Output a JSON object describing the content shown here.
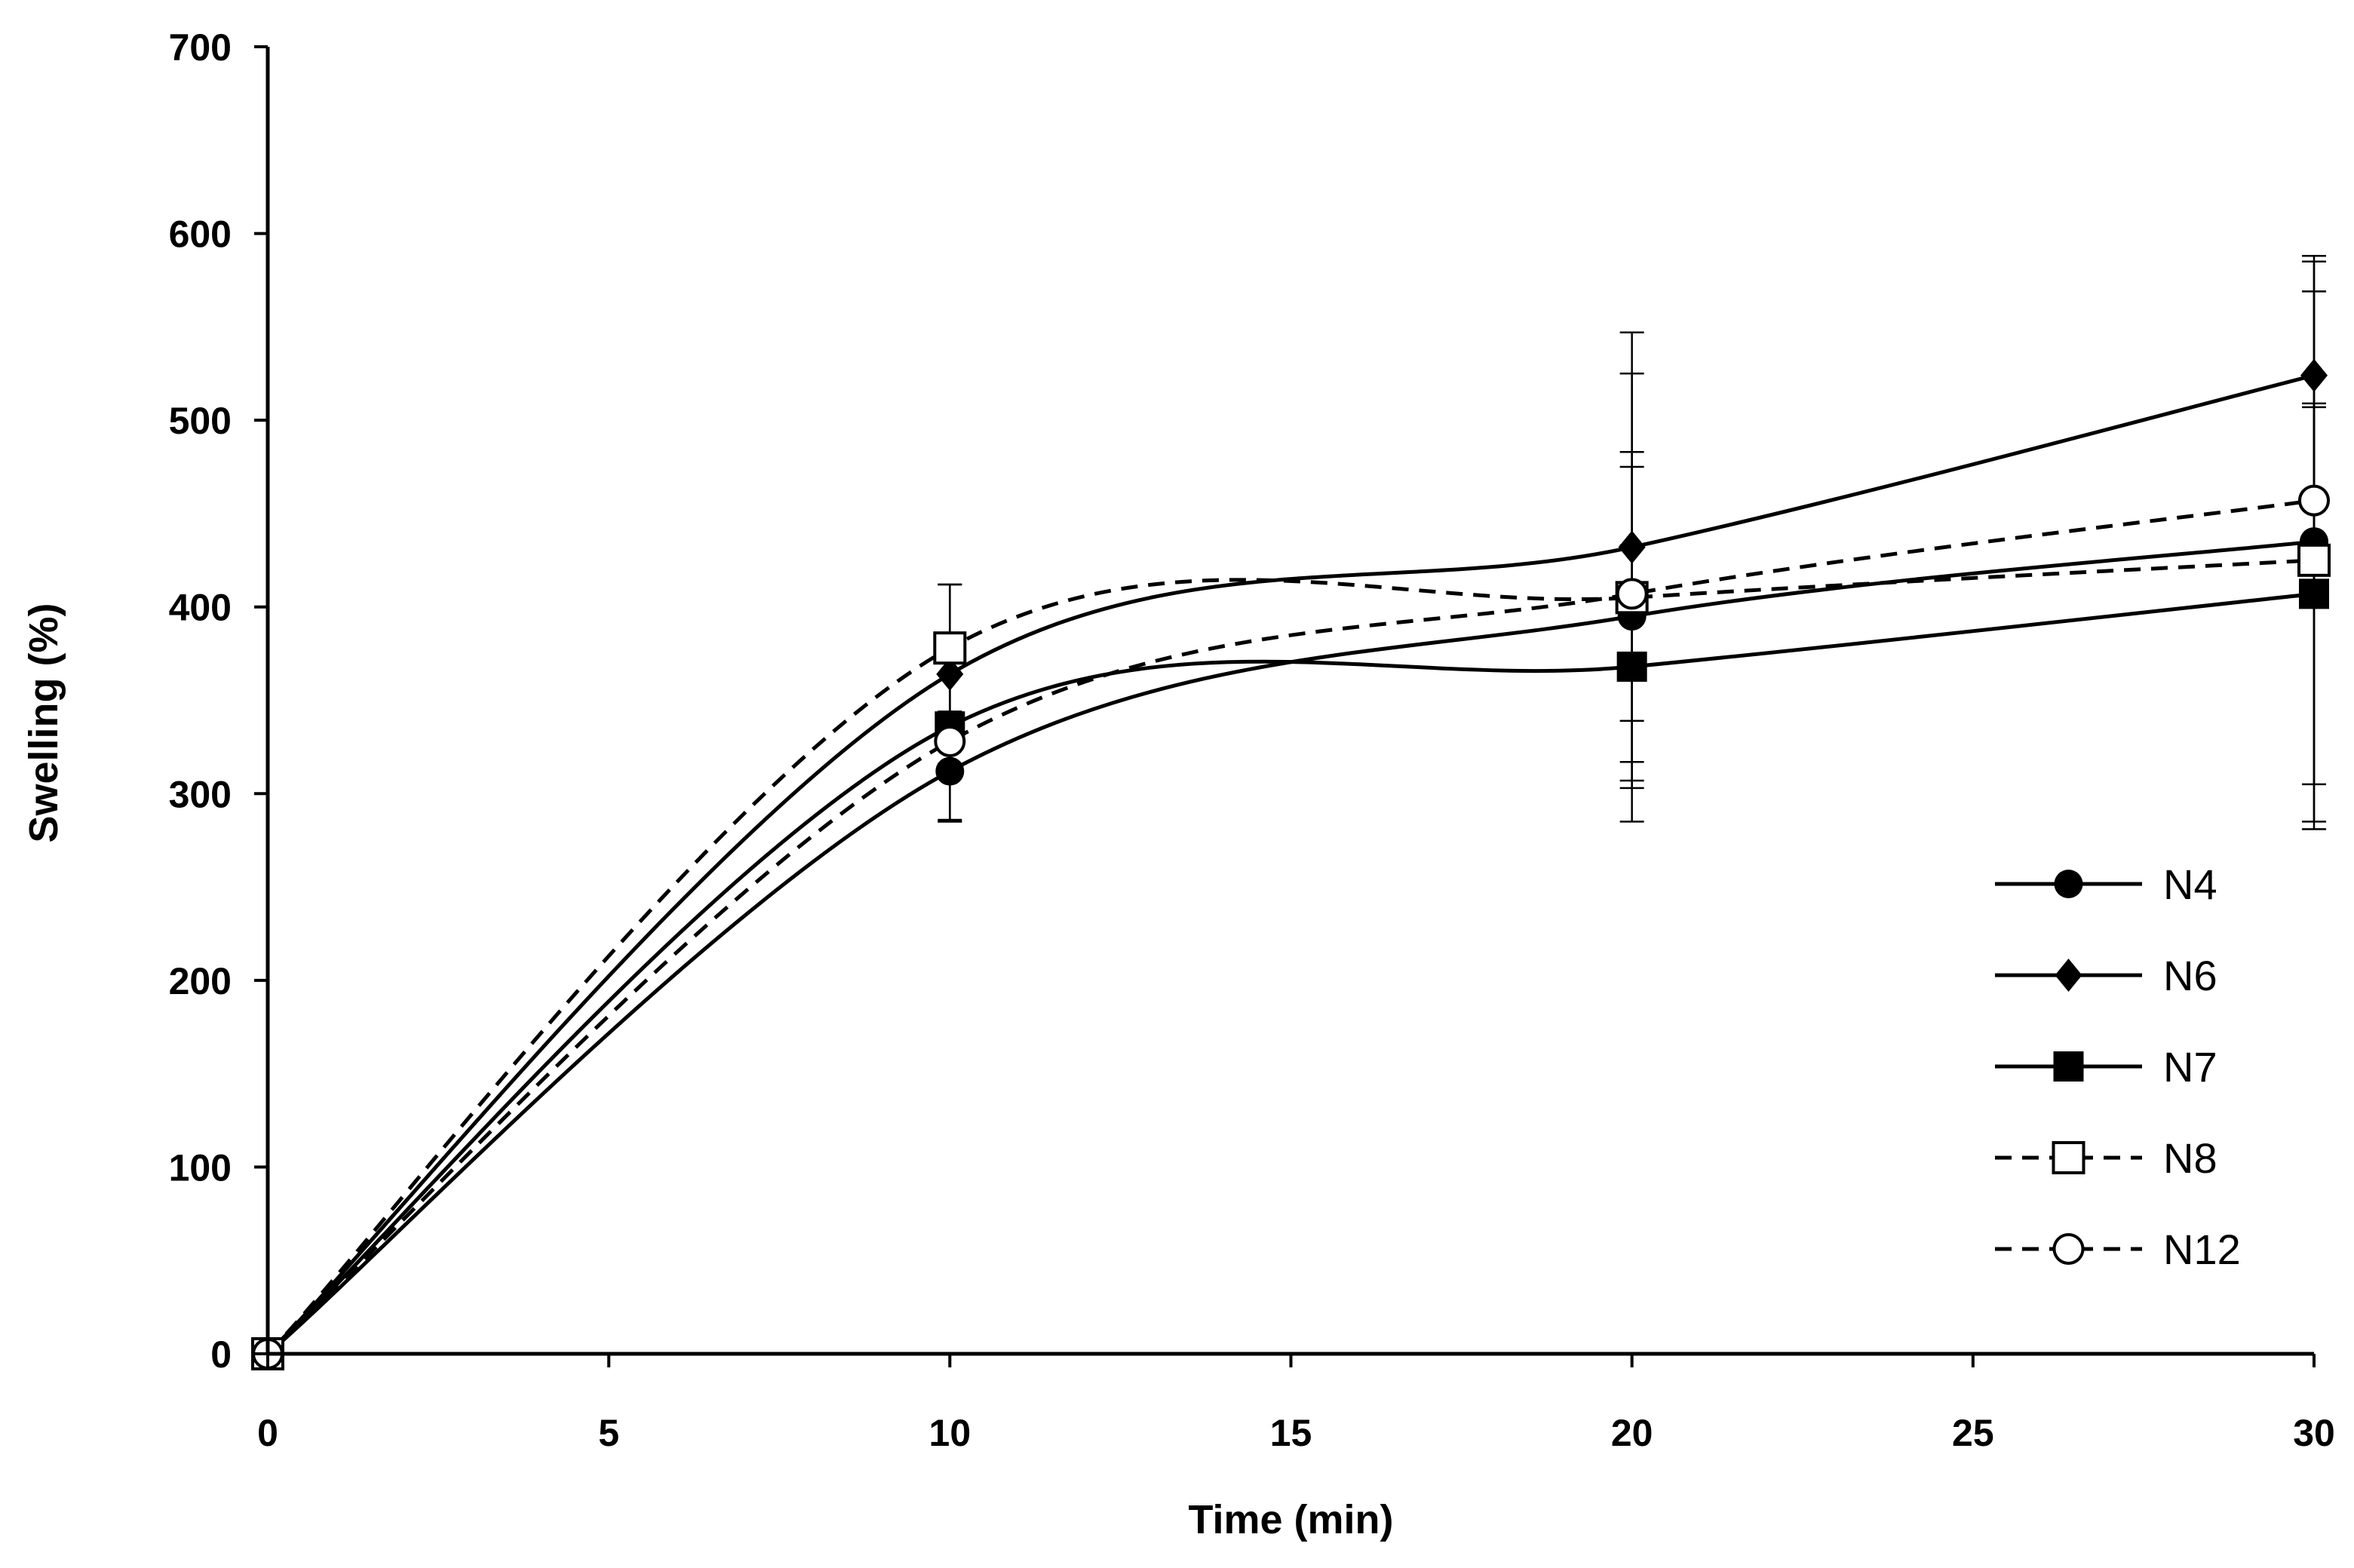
{
  "chart_data": {
    "type": "line",
    "title": "",
    "xlabel": "Time (min)",
    "ylabel": "Swelling (%)",
    "xlim": [
      0,
      30
    ],
    "ylim": [
      0,
      700
    ],
    "xticks": [
      0,
      5,
      10,
      15,
      20,
      25,
      30
    ],
    "yticks": [
      0,
      100,
      200,
      300,
      400,
      500,
      600,
      700
    ],
    "grid": false,
    "legend_position": "bottom-right",
    "x": [
      0,
      10,
      20,
      30
    ],
    "series": [
      {
        "name": "N4",
        "marker": "circle-filled",
        "dashed": false,
        "values": [
          0,
          312,
          395,
          435
        ],
        "errors": [
          0,
          27,
          88,
          150
        ]
      },
      {
        "name": "N6",
        "marker": "diamond-filled",
        "dashed": false,
        "values": [
          0,
          364,
          432,
          524
        ],
        "errors": [
          0,
          48,
          115,
          64
        ]
      },
      {
        "name": "N7",
        "marker": "square-filled",
        "dashed": false,
        "values": [
          0,
          336,
          368,
          407
        ],
        "errors": [
          0,
          50,
          65,
          102
        ]
      },
      {
        "name": "N8",
        "marker": "square-open",
        "dashed": true,
        "values": [
          0,
          378,
          405,
          425
        ],
        "errors": [
          0,
          34,
          120,
          144
        ]
      },
      {
        "name": "N12",
        "marker": "circle-open",
        "dashed": true,
        "values": [
          0,
          328,
          407,
          457
        ],
        "errors": [
          0,
          43,
          68,
          50
        ]
      }
    ]
  }
}
